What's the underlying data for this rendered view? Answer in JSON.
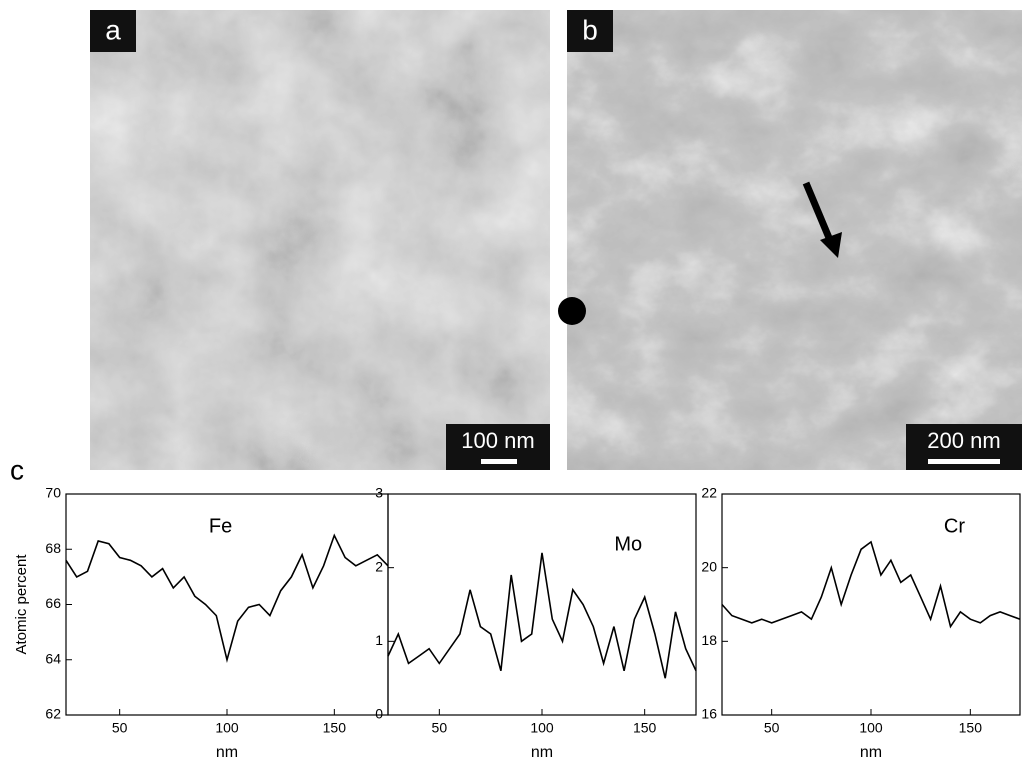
{
  "panels": [
    {
      "label": "a",
      "scale_bar": "100 nm"
    },
    {
      "label": "b",
      "scale_bar": "200 nm"
    }
  ],
  "figure_label": "c",
  "chart_data": [
    {
      "type": "line",
      "ylabel": "Atomic percent",
      "xlabel": "nm",
      "xlim": [
        25,
        175
      ],
      "xticks": [
        50,
        100,
        150
      ],
      "ylim": [
        62,
        70
      ],
      "yticks": [
        62,
        64,
        66,
        68,
        70
      ],
      "x": [
        25,
        30,
        35,
        40,
        45,
        50,
        55,
        60,
        65,
        70,
        75,
        80,
        85,
        90,
        95,
        100,
        105,
        110,
        115,
        120,
        125,
        130,
        135,
        140,
        145,
        150,
        155,
        160,
        165,
        170,
        175
      ],
      "series": [
        {
          "name": "Fe",
          "color": "#000000",
          "values": [
            67.6,
            67.0,
            67.2,
            68.3,
            68.2,
            67.7,
            67.6,
            67.4,
            67.0,
            67.3,
            66.6,
            67.0,
            66.3,
            66.0,
            65.6,
            64.0,
            65.4,
            65.9,
            66.0,
            65.6,
            66.5,
            67.0,
            67.8,
            66.6,
            67.4,
            68.5,
            67.7,
            67.4,
            67.6,
            67.8,
            67.4
          ]
        }
      ]
    },
    {
      "type": "line",
      "xlabel": "nm",
      "xlim": [
        25,
        175
      ],
      "xticks": [
        50,
        100,
        150
      ],
      "ylim": [
        0,
        3
      ],
      "yticks": [
        0,
        1,
        2,
        3
      ],
      "x": [
        25,
        30,
        35,
        40,
        45,
        50,
        55,
        60,
        65,
        70,
        75,
        80,
        85,
        90,
        95,
        100,
        105,
        110,
        115,
        120,
        125,
        130,
        135,
        140,
        145,
        150,
        155,
        160,
        165,
        170,
        175
      ],
      "series": [
        {
          "name": "Mo",
          "color": "#000000",
          "values": [
            0.8,
            1.1,
            0.7,
            0.8,
            0.9,
            0.7,
            0.9,
            1.1,
            1.7,
            1.2,
            1.1,
            0.6,
            1.9,
            1.0,
            1.1,
            2.2,
            1.3,
            1.0,
            1.7,
            1.5,
            1.2,
            0.7,
            1.2,
            0.6,
            1.3,
            1.6,
            1.1,
            0.5,
            1.4,
            0.9,
            0.6
          ]
        }
      ]
    },
    {
      "type": "line",
      "xlabel": "nm",
      "xlim": [
        25,
        175
      ],
      "xticks": [
        50,
        100,
        150
      ],
      "ylim": [
        16,
        22
      ],
      "yticks": [
        16,
        18,
        20,
        22
      ],
      "x": [
        25,
        30,
        35,
        40,
        45,
        50,
        55,
        60,
        65,
        70,
        75,
        80,
        85,
        90,
        95,
        100,
        105,
        110,
        115,
        120,
        125,
        130,
        135,
        140,
        145,
        150,
        155,
        160,
        165,
        170,
        175
      ],
      "series": [
        {
          "name": "Cr",
          "color": "#000000",
          "values": [
            19.0,
            18.7,
            18.6,
            18.5,
            18.6,
            18.5,
            18.6,
            18.7,
            18.8,
            18.6,
            19.2,
            20.0,
            19.0,
            19.8,
            20.5,
            20.7,
            19.8,
            20.2,
            19.6,
            19.8,
            19.2,
            18.6,
            19.5,
            18.4,
            18.8,
            18.6,
            18.5,
            18.7,
            18.8,
            18.7,
            18.6
          ]
        }
      ]
    }
  ]
}
